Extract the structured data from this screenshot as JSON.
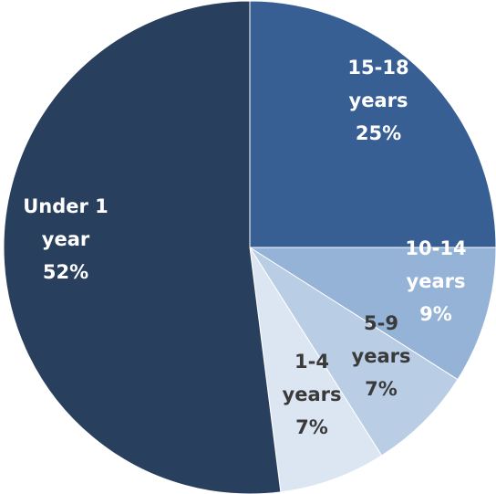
{
  "chart_data": {
    "type": "pie",
    "title": "",
    "slices": [
      {
        "category": "15-18 years",
        "value": 25,
        "label_lines": [
          "15-18",
          "years",
          "25%"
        ],
        "color": "#375F93",
        "label_color": "#FFFFFF"
      },
      {
        "category": "10-14 years",
        "value": 9,
        "label_lines": [
          "10-14",
          "years",
          "9%"
        ],
        "color": "#95B3D7",
        "label_color": "#FFFFFF"
      },
      {
        "category": "5-9 years",
        "value": 7,
        "label_lines": [
          "5-9",
          "years",
          "7%"
        ],
        "color": "#B9CDE5",
        "label_color": "#3A3A3A"
      },
      {
        "category": "1-4 years",
        "value": 7,
        "label_lines": [
          "1-4",
          "years",
          "7%"
        ],
        "color": "#DCE6F2",
        "label_color": "#3A3A3A"
      },
      {
        "category": "Under 1 year",
        "value": 52,
        "label_lines": [
          "Under 1",
          "year",
          "52%"
        ],
        "color": "#283F5E",
        "label_color": "#FFFFFF"
      }
    ]
  }
}
